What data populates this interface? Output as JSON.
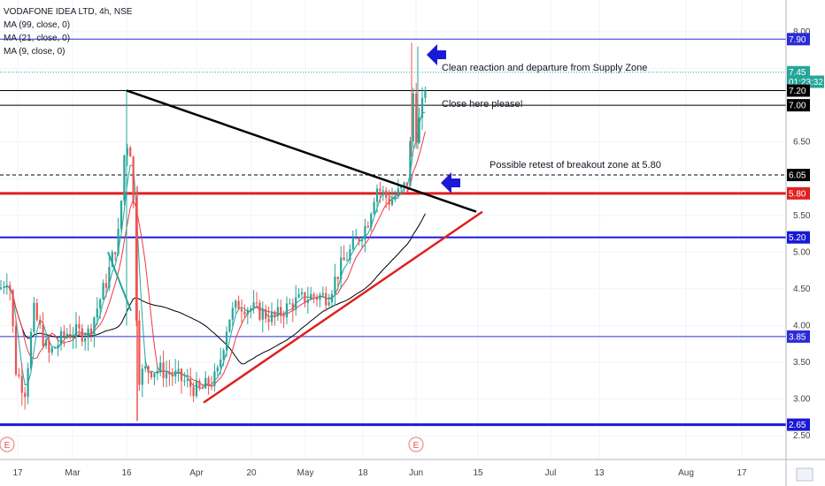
{
  "legend": {
    "title": "VODAFONE IDEA LTD, 4h, NSE",
    "ma1": "MA (99, close, 0)",
    "ma2": "MA (21, close, 0)",
    "ma3": "MA (9, close, 0)"
  },
  "annotations": {
    "supply": "Clean reaction and departure from Supply Zone",
    "close": "Close here please!",
    "retest": "Possible retest of breakout zone at 5.80"
  },
  "price_badges": [
    {
      "label": "7.90",
      "value": 7.9,
      "color": "#2b2bd9"
    },
    {
      "label": "7.45",
      "value": 7.45,
      "color": "#26a69a"
    },
    {
      "label": "01:23:32",
      "value": 7.32,
      "color": "#26a69a"
    },
    {
      "label": "7.20",
      "value": 7.2,
      "color": "#000000"
    },
    {
      "label": "7.00",
      "value": 7.0,
      "color": "#000000"
    },
    {
      "label": "6.05",
      "value": 6.05,
      "color": "#000000"
    },
    {
      "label": "5.80",
      "value": 5.8,
      "color": "#e02020"
    },
    {
      "label": "5.20",
      "value": 5.2,
      "color": "#1a1ad6"
    },
    {
      "label": "3.85",
      "value": 3.85,
      "color": "#2b2bd9"
    },
    {
      "label": "2.65",
      "value": 2.65,
      "color": "#1a1ad6"
    }
  ],
  "price_ticks": [
    "8.00",
    "6.50",
    "5.50",
    "5.00",
    "4.50",
    "4.00",
    "3.50",
    "3.00",
    "2.50"
  ],
  "time_ticks": [
    "17",
    "Mar",
    "16",
    "Apr",
    "20",
    "May",
    "18",
    "Jun",
    "15",
    "Jul",
    "13",
    "Aug",
    "17"
  ],
  "earnings_marker": "E",
  "chart_data": {
    "type": "candlestick",
    "title": "VODAFONE IDEA LTD, 4h, NSE",
    "ylim": [
      2.35,
      8.1
    ],
    "x_labels": [
      "17",
      "Mar",
      "16",
      "Apr",
      "20",
      "May",
      "18",
      "Jun",
      "15",
      "Jul",
      "13",
      "Aug",
      "17"
    ],
    "horizontal_levels": [
      {
        "value": 7.9,
        "color": "#2b2bd9",
        "style": "solid"
      },
      {
        "value": 7.2,
        "color": "#000000",
        "style": "solid"
      },
      {
        "value": 7.0,
        "color": "#000000",
        "style": "solid"
      },
      {
        "value": 6.05,
        "color": "#000000",
        "style": "dashed"
      },
      {
        "value": 5.8,
        "color": "#e02020",
        "style": "solid"
      },
      {
        "value": 5.2,
        "color": "#1a1ad6",
        "style": "solid"
      },
      {
        "value": 3.85,
        "color": "#2b2bd9",
        "style": "solid"
      },
      {
        "value": 2.65,
        "color": "#1a1ad6",
        "style": "solid"
      }
    ],
    "trendlines": [
      {
        "name": "resistance",
        "from": [
          143,
          7.2
        ],
        "to": [
          538,
          5.55
        ],
        "color": "#000000"
      },
      {
        "name": "support",
        "from": [
          230,
          2.95
        ],
        "to": [
          545,
          5.55
        ],
        "color": "#e02020"
      }
    ],
    "current_price": 7.45,
    "series": [
      {
        "name": "MA (99, close, 0)",
        "color": "#000000"
      },
      {
        "name": "MA (21, close, 0)",
        "color": "#f23645"
      },
      {
        "name": "MA (9, close, 0)",
        "color": "#26a69a"
      }
    ]
  }
}
